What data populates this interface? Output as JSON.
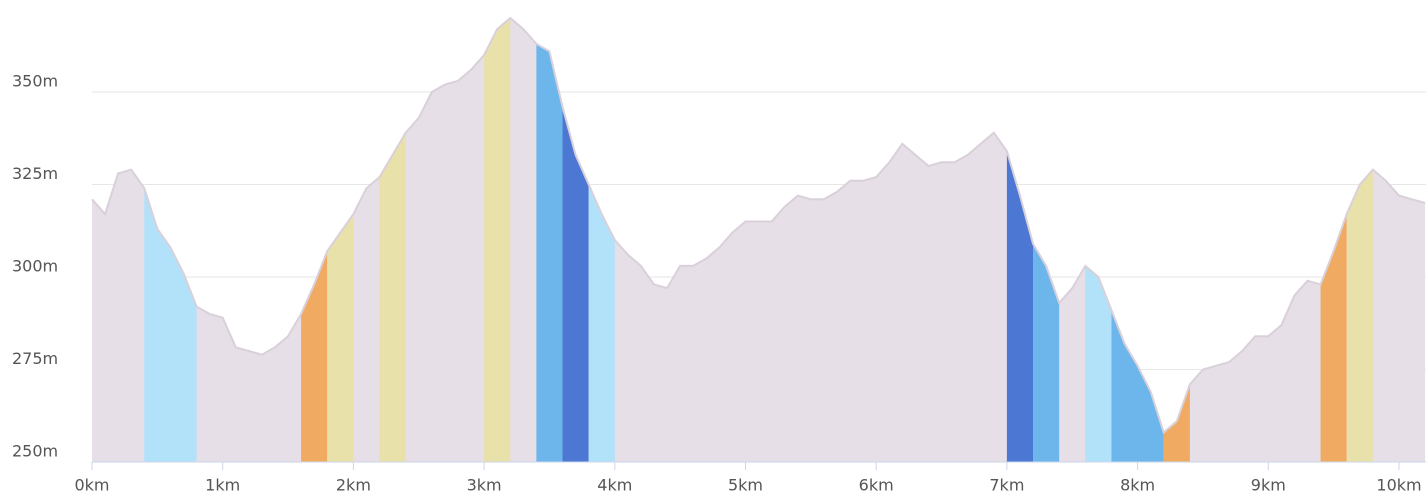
{
  "chart_data": {
    "type": "area",
    "x": [
      0,
      0.1,
      0.2,
      0.3,
      0.4,
      0.5,
      0.6,
      0.7,
      0.8,
      0.9,
      1,
      1.1,
      1.2,
      1.3,
      1.4,
      1.5,
      1.6,
      1.7,
      1.8,
      1.9,
      2,
      2.1,
      2.2,
      2.3,
      2.4,
      2.5,
      2.6,
      2.7,
      2.8,
      2.9,
      3,
      3.1,
      3.2,
      3.3,
      3.4,
      3.5,
      3.6,
      3.7,
      3.8,
      3.9,
      4,
      4.1,
      4.2,
      4.3,
      4.4,
      4.5,
      4.6,
      4.7,
      4.8,
      4.9,
      5,
      5.1,
      5.2,
      5.3,
      5.4,
      5.5,
      5.6,
      5.7,
      5.8,
      5.9,
      6,
      6.1,
      6.2,
      6.3,
      6.4,
      6.5,
      6.6,
      6.7,
      6.8,
      6.9,
      7,
      7.1,
      7.2,
      7.3,
      7.4,
      7.5,
      7.6,
      7.7,
      7.8,
      7.9,
      8,
      8.1,
      8.2,
      8.3,
      8.4,
      8.5,
      8.6,
      8.7,
      8.8,
      8.9,
      9,
      9.1,
      9.2,
      9.3,
      9.4,
      9.5,
      9.6,
      9.7,
      9.8,
      9.9,
      10,
      10.1,
      10.2
    ],
    "values": [
      321,
      317,
      328,
      329,
      324,
      313,
      308,
      301,
      292,
      290,
      289,
      281,
      280,
      279,
      281,
      284,
      290,
      298,
      307,
      312,
      317,
      324,
      327,
      333,
      339,
      343,
      350,
      352,
      353,
      356,
      360,
      367,
      370,
      367,
      363,
      361,
      346,
      333,
      325,
      317,
      310,
      306,
      303,
      298,
      297,
      303,
      303,
      305,
      308,
      312,
      315,
      315,
      315,
      319,
      322,
      321,
      321,
      323,
      326,
      326,
      327,
      331,
      336,
      333,
      330,
      331,
      331,
      333,
      336,
      339,
      334,
      322,
      309,
      303,
      293,
      297,
      303,
      300,
      291,
      282,
      276,
      269,
      258,
      261,
      271,
      275,
      276,
      277,
      280,
      284,
      284,
      287,
      295,
      299,
      298,
      307,
      317,
      325,
      329,
      326,
      322,
      321,
      320
    ],
    "color": "#e6dfe7",
    "bands": [
      {
        "from": 0.4,
        "to": 0.8,
        "color": "#b2e1fa"
      },
      {
        "from": 1.6,
        "to": 1.8,
        "color": "#f0aa62"
      },
      {
        "from": 1.8,
        "to": 2.0,
        "color": "#e8e1a9"
      },
      {
        "from": 2.2,
        "to": 2.4,
        "color": "#e8e1a9"
      },
      {
        "from": 3.0,
        "to": 3.2,
        "color": "#e8e1a9"
      },
      {
        "from": 3.4,
        "to": 3.6,
        "color": "#6db6eb"
      },
      {
        "from": 3.6,
        "to": 3.8,
        "color": "#4c77d2"
      },
      {
        "from": 3.8,
        "to": 4.0,
        "color": "#b2e1fa"
      },
      {
        "from": 7.0,
        "to": 7.2,
        "color": "#4c77d2"
      },
      {
        "from": 7.2,
        "to": 7.4,
        "color": "#6db6eb"
      },
      {
        "from": 7.6,
        "to": 7.8,
        "color": "#b2e1fa"
      },
      {
        "from": 7.8,
        "to": 8.2,
        "color": "#6db6eb"
      },
      {
        "from": 8.2,
        "to": 8.4,
        "color": "#f0aa62"
      },
      {
        "from": 9.4,
        "to": 9.6,
        "color": "#f0aa62"
      },
      {
        "from": 9.6,
        "to": 9.8,
        "color": "#e8e1a9"
      }
    ],
    "xlim": [
      0,
      10.2
    ],
    "ylim": [
      250,
      373
    ],
    "xticks": [
      {
        "value": 0,
        "label": "0km"
      },
      {
        "value": 1,
        "label": "1km"
      },
      {
        "value": 2,
        "label": "2km"
      },
      {
        "value": 3,
        "label": "3km"
      },
      {
        "value": 4,
        "label": "4km"
      },
      {
        "value": 5,
        "label": "5km"
      },
      {
        "value": 6,
        "label": "6km"
      },
      {
        "value": 7,
        "label": "7km"
      },
      {
        "value": 8,
        "label": "8km"
      },
      {
        "value": 9,
        "label": "9km"
      },
      {
        "value": 10,
        "label": "10km"
      }
    ],
    "yticks": [
      {
        "value": 250,
        "label": "250m"
      },
      {
        "value": 275,
        "label": "275m"
      },
      {
        "value": 300,
        "label": "300m"
      },
      {
        "value": 325,
        "label": "325m"
      },
      {
        "value": 350,
        "label": "350m"
      }
    ],
    "grid": true
  }
}
